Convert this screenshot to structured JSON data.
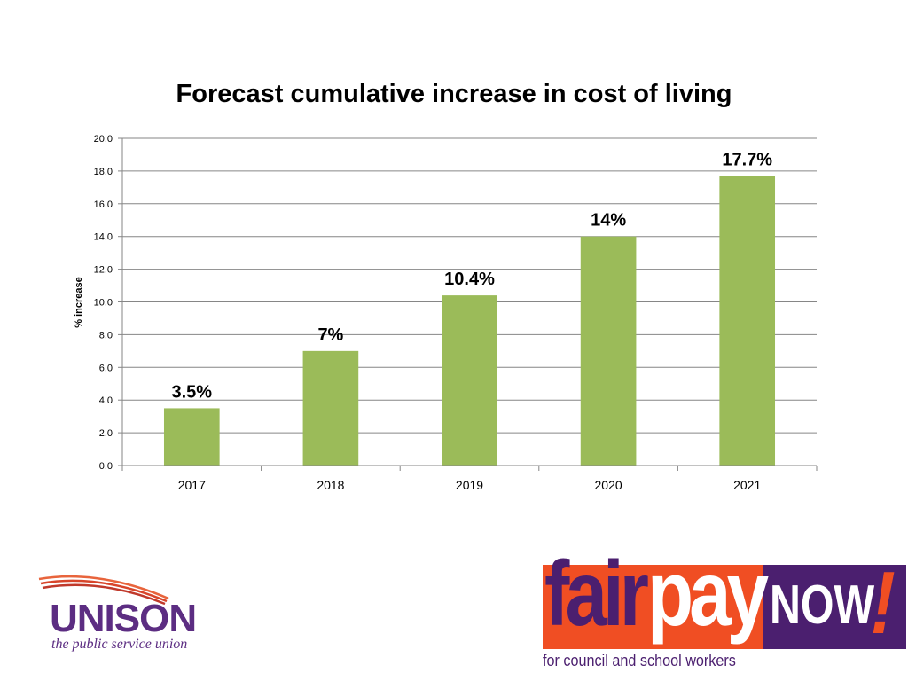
{
  "chart_data": {
    "type": "bar",
    "title": "Forecast cumulative increase in cost of living",
    "ylabel": "% increase",
    "xlabel": "",
    "categories": [
      "2017",
      "2018",
      "2019",
      "2020",
      "2021"
    ],
    "values": [
      3.5,
      7.0,
      10.4,
      14.0,
      17.7
    ],
    "data_labels": [
      "3.5%",
      "7%",
      "10.4%",
      "14%",
      "17.7%"
    ],
    "ylim": [
      0,
      20
    ],
    "yticks": [
      "0.0",
      "2.0",
      "4.0",
      "6.0",
      "8.0",
      "10.0",
      "12.0",
      "14.0",
      "16.0",
      "18.0",
      "20.0"
    ],
    "grid": true,
    "bar_color": "#9bbb59",
    "grid_color": "#868686"
  },
  "logos": {
    "unison": {
      "word": "UNISON",
      "tagline": "the public service union",
      "color": "#5c2d82"
    },
    "fair_pay_now": {
      "fair": "fair",
      "pay": "pay",
      "now": "NOW",
      "exclaim": "!",
      "tagline": "for council and school workers",
      "orange": "#f04e23",
      "purple": "#4b1f6f"
    }
  }
}
